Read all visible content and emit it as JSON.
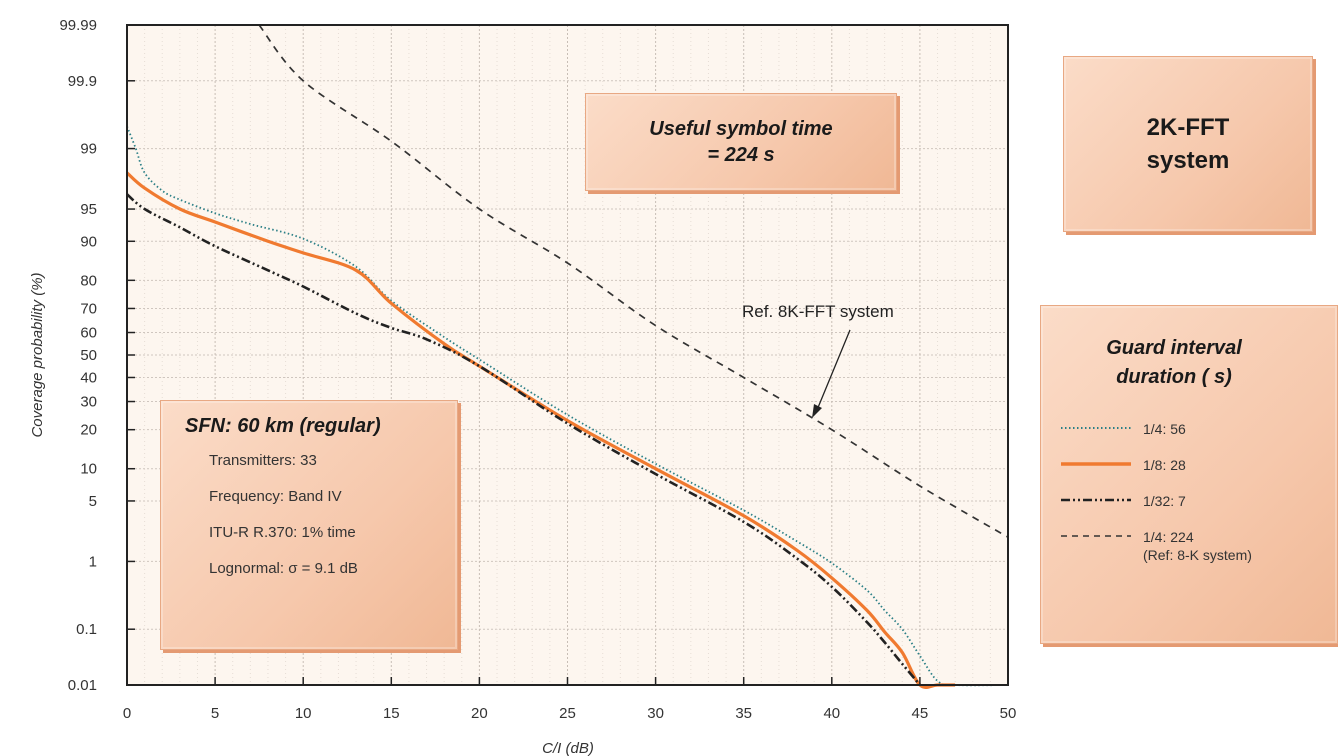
{
  "boxes": {
    "useful_line1": "Useful symbol time",
    "useful_line2": "= 224   s",
    "system_line1": "2K-FFT",
    "system_line2": "system",
    "sfn_title": "SFN: 60 km (regular)",
    "sfn_lines": [
      "Transmitters: 33",
      "Frequency: Band IV",
      "ITU-R R.370: 1% time",
      "Lognormal: σ = 9.1 dB"
    ],
    "guard_line1": "Guard interval",
    "guard_line2": "duration (  s)"
  },
  "annotation": "Ref. 8K-FFT system",
  "legend": [
    {
      "label": "1/4: 56",
      "style": "dotted",
      "color": "#2a7f86"
    },
    {
      "label": "1/8: 28",
      "style": "solid",
      "color": "#f07a30"
    },
    {
      "label": "1/32: 7",
      "style": "dashdot",
      "color": "#222222"
    },
    {
      "label": "1/4: 224",
      "sublabel": "(Ref: 8-K system)",
      "style": "dashed",
      "color": "#333333"
    }
  ],
  "chart_data": {
    "type": "line",
    "title": "",
    "xlabel": "C/I  (dB)",
    "ylabel": "Coverage probability (%)",
    "xlim": [
      0,
      50
    ],
    "x_ticks": [
      0,
      5,
      10,
      15,
      20,
      25,
      30,
      35,
      40,
      45,
      50
    ],
    "y_scale": "probability",
    "y_ticks": [
      "0.01",
      "0.1",
      "1",
      "5",
      "10",
      "20",
      "30",
      "40",
      "50",
      "60",
      "70",
      "80",
      "90",
      "95",
      "99",
      "99.9",
      "99.99"
    ],
    "grid": true,
    "series": [
      {
        "name": "1/4: 56",
        "style": "dotted",
        "color": "#2a7f86",
        "x": [
          0,
          0.5,
          1,
          2,
          3,
          5,
          7,
          10,
          13,
          15,
          18,
          20,
          25,
          30,
          35,
          38,
          40,
          42,
          43,
          44,
          45,
          46,
          47,
          50
        ],
        "y": [
          99.5,
          99,
          98,
          96.8,
          96,
          94.5,
          93,
          90.5,
          84,
          73,
          58,
          48,
          25,
          11,
          4,
          1.8,
          0.95,
          0.4,
          0.2,
          0.1,
          0.035,
          0.012,
          0.01,
          0.01
        ]
      },
      {
        "name": "1/8: 28",
        "style": "solid",
        "color": "#f07a30",
        "x": [
          0,
          1,
          3,
          5,
          8,
          10,
          13,
          15,
          18,
          20,
          25,
          30,
          35,
          38,
          40,
          42,
          43,
          44,
          45,
          46,
          47
        ],
        "y": [
          98,
          97,
          95,
          93.3,
          90,
          87.5,
          83,
          72,
          55,
          45,
          23,
          10,
          3.5,
          1.4,
          0.6,
          0.2,
          0.09,
          0.04,
          0.01,
          0.01,
          0.01
        ]
      },
      {
        "name": "1/32: 7",
        "style": "dashdot",
        "color": "#222222",
        "x": [
          0,
          1,
          3,
          5,
          8,
          10,
          13,
          15,
          17,
          20,
          25,
          30,
          35,
          38,
          40,
          42,
          43,
          44,
          45
        ],
        "y": [
          96.5,
          95,
          92.5,
          89,
          83,
          78,
          68,
          62,
          57,
          45,
          22,
          9,
          3,
          1.1,
          0.45,
          0.13,
          0.06,
          0.025,
          0.01
        ]
      },
      {
        "name": "1/4: 224",
        "style": "dashed",
        "color": "#333333",
        "x": [
          7.5,
          10,
          15,
          20,
          25,
          30,
          35,
          40,
          45,
          50
        ],
        "y": [
          99.99,
          99.9,
          99.2,
          95,
          85,
          63,
          40,
          20,
          7,
          2
        ]
      }
    ]
  }
}
